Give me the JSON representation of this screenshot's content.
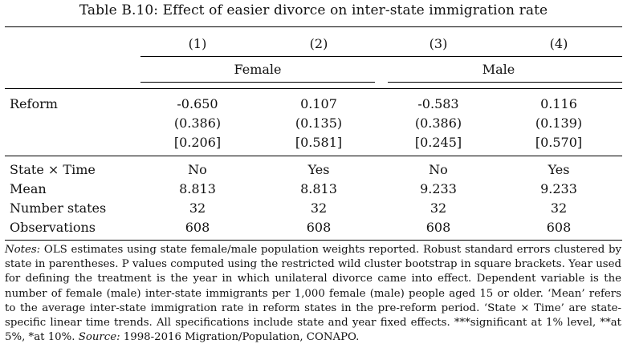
{
  "table": {
    "title": "Table B.10: Effect of easier divorce on inter-state immigration rate",
    "columns": [
      "(1)",
      "(2)",
      "(3)",
      "(4)"
    ],
    "groups": {
      "female": "Female",
      "male": "Male"
    },
    "rows": {
      "reform": {
        "label": "Reform",
        "coef": [
          "-0.650",
          "0.107",
          "-0.583",
          "0.116"
        ],
        "se": [
          "(0.386)",
          "(0.135)",
          "(0.386)",
          "(0.139)"
        ],
        "p": [
          "[0.206]",
          "[0.581]",
          "[0.245]",
          "[0.570]"
        ]
      },
      "state_time": {
        "label": "State × Time",
        "values": [
          "No",
          "Yes",
          "No",
          "Yes"
        ]
      },
      "mean": {
        "label": "Mean",
        "values": [
          "8.813",
          "8.813",
          "9.233",
          "9.233"
        ]
      },
      "number_states": {
        "label": "Number states",
        "values": [
          "32",
          "32",
          "32",
          "32"
        ]
      },
      "observations": {
        "label": "Observations",
        "values": [
          "608",
          "608",
          "608",
          "608"
        ]
      }
    }
  },
  "notes": {
    "label": "Notes:",
    "text_main": "OLS estimates using state female/male population weights reported. Robust standard errors clustered by state in parentheses. P values computed using the restricted wild cluster bootstrap in square brackets. Year used for defining the treatment is the year in which unilateral divorce came into effect. Dependent variable is the number of female (male) inter-state immigrants per 1,000 female (male) people aged 15 or older. ‘Mean’ refers to the average inter-state immigration rate in reform states in the pre-reform period. ‘State × Time’ are state-specific linear time trends. All specifications include state and year fixed effects. ***significant at 1% level, **at 5%, *at 10%.",
    "source_label": "Source:",
    "source_text": "1998-2016 Migration/Population, CONAPO."
  }
}
